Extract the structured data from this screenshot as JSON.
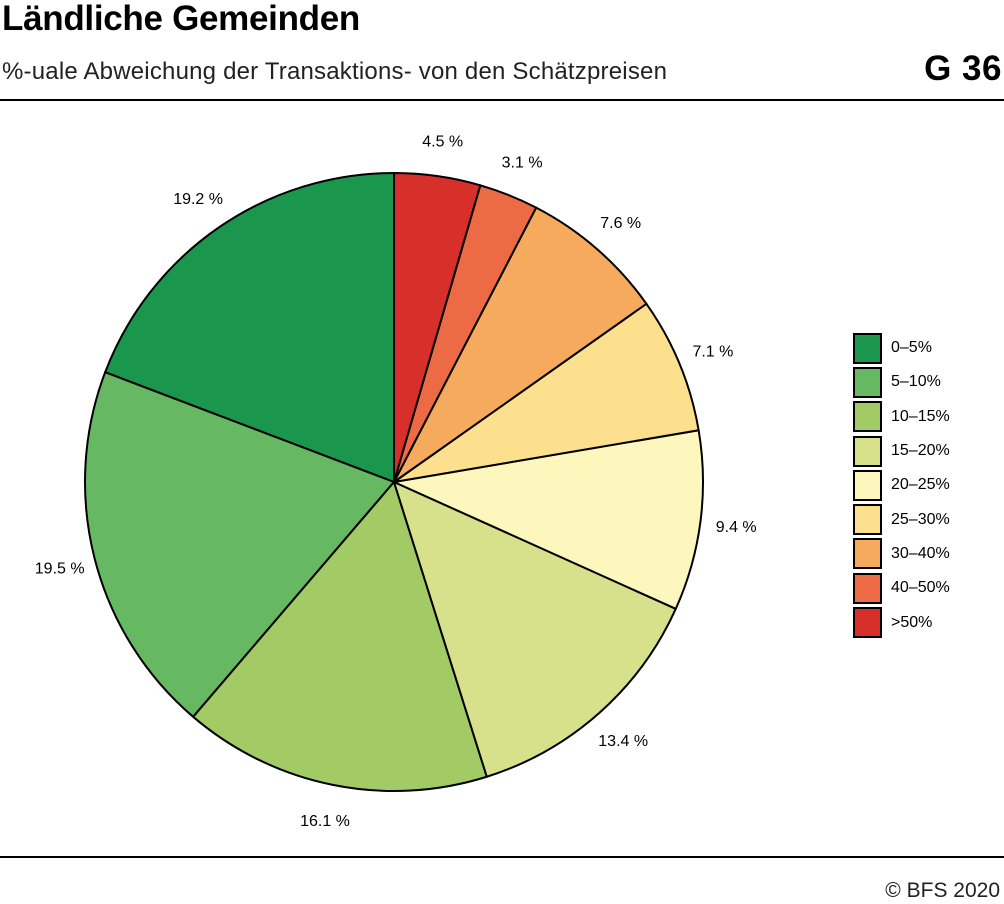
{
  "header": {
    "title": "Ländliche Gemeinden",
    "subtitle": "%-uale Abweichung der Transaktions- von den Schätzpreisen",
    "chart_id": "G 36"
  },
  "footer": {
    "source": "© BFS 2020"
  },
  "chart_data": {
    "type": "pie",
    "title": "Ländliche Gemeinden",
    "subtitle": "%-uale Abweichung der Transaktions- von den Schätzpreisen",
    "categories": [
      "0–5%",
      "5–10%",
      "10–15%",
      "15–20%",
      "20–25%",
      "25–30%",
      "30–40%",
      "40–50%",
      ">50%"
    ],
    "values": [
      19.2,
      19.5,
      16.1,
      13.4,
      9.4,
      7.1,
      7.6,
      3.1,
      4.5
    ],
    "value_labels": [
      "19.2 %",
      "19.5 %",
      "16.1 %",
      "13.4 %",
      "9.4 %",
      "7.1 %",
      "7.6 %",
      "3.1 %",
      "4.5 %"
    ],
    "colors": [
      "#1b974d",
      "#66b863",
      "#a2cb65",
      "#d7e18b",
      "#fdf6bd",
      "#fde08d",
      "#f6aa5e",
      "#ec6b44",
      "#d7302a"
    ],
    "start": "12 o'clock",
    "slice_order": [
      "10–15%",
      "5–10%",
      "0–5%",
      ">50%",
      "40–50%",
      "30–40%",
      "25–30%",
      "20–25%",
      "15–20%"
    ],
    "direction": "counter-clockwise from 12 o'clock: 0–5%, 5–10%, 10–15%, 15–20%, 20–25%, 25–30%, 30–40%, 40–50%, >50%",
    "legend_position": "right"
  }
}
